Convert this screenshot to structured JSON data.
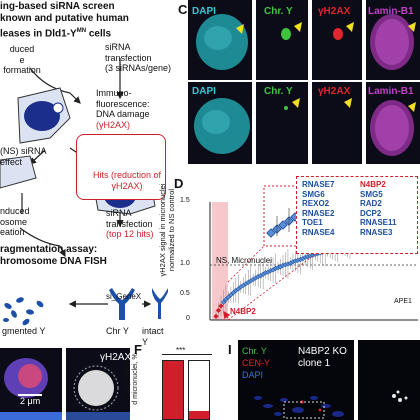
{
  "panel_b": {
    "header_line1": "ing-based siRNA screen",
    "header_line2": "known and putative human",
    "header_line3": "leases in Dld1-Y",
    "header_superscript": "MN",
    "header_suffix": " cells",
    "step_left_1": "duced",
    "step_left_2": "e formation",
    "step_sirna_1": "siRNA",
    "step_sirna_2": "transfection",
    "step_sirna_3": "(3 siRNAs/gene)",
    "step_if_1": "Immuno-",
    "step_if_2": "fluorescence:",
    "step_if_3": "DNA damage",
    "step_if_4": "(γH2AX)",
    "ns_1": "(NS) siRNA",
    "ns_2": "effect",
    "hits_1": "Hits (reduction of",
    "hits_2": "γH2AX)",
    "induced_1": "nduced",
    "induced_2": "osome",
    "induced_3": "eation",
    "sirna2_1": "siRNA",
    "sirna2_2": "transfection",
    "sirna2_3": "(top 12 hits)",
    "frag_1": "ragmentation assay:",
    "frag_2": "hromosome DNA FISH",
    "frag_left": "gmented Y",
    "chr_y": "Chr Y",
    "si_gene": "si_GeneX",
    "intact_y": "intact Y"
  },
  "panel_c": {
    "letter": "C",
    "labels": [
      "DAPI",
      "Chr. Y",
      "γH2AX",
      "Lamin-B1"
    ],
    "label_colors": [
      "#38c8d0",
      "#3fc43f",
      "#e0262e",
      "#c23fc8"
    ]
  },
  "panel_d": {
    "letter": "D",
    "y_axis_line1": "γH2AX signal in micronuclei",
    "y_axis_line2": "normalized to NS control",
    "y_ticks": [
      "1.5",
      "1.0",
      "0.5",
      "0"
    ],
    "ns_label": "NS, Micronuclei",
    "genes_col1": [
      "RNASE7",
      "SMG6",
      "REXO2",
      "RNASE2",
      "TOE1",
      "RNASE4"
    ],
    "genes_col2": [
      "N4BP2",
      "SMG5",
      "RAD2",
      "DCP2",
      "RNASE11",
      "RNASE3"
    ],
    "highlight_gene": "N4BP2",
    "apex_label": "APE1"
  },
  "panel_e": {
    "scale": "2 μm",
    "marker": "γH2AX"
  },
  "panel_f": {
    "letter": "F",
    "y_label_1": "AX-positive",
    "y_label_2": "d micronuclei, %",
    "significance": "***"
  },
  "panel_i": {
    "letter": "I",
    "chr_y": "Chr. Y",
    "cen_y": "CEN-Y",
    "dapi": "DAPI",
    "title_1": "N4BP2 KO",
    "title_2": "clone 1"
  },
  "colors": {
    "red": "#d01f2a",
    "blue": "#1c4fa0",
    "dapi_cyan": "#38c8d0",
    "lamin_magenta": "#c23fc8",
    "green": "#3fc43f"
  },
  "chart_data": {
    "type": "scatter",
    "title": "",
    "xlabel": "",
    "ylabel": "γH2AX signal in micronuclei normalized to NS control",
    "ylim": [
      0,
      1.6
    ],
    "reference_line": 1.0,
    "series": [
      {
        "name": "siRNA knockdowns (sorted)",
        "values": [
          0.05,
          0.13,
          0.19,
          0.24,
          0.28,
          0.31,
          0.34,
          0.37,
          0.4,
          0.42,
          0.45,
          0.47,
          0.49,
          0.51,
          0.53,
          0.55,
          0.57,
          0.59,
          0.6,
          0.62,
          0.64,
          0.65,
          0.67,
          0.68,
          0.7,
          0.71,
          0.72,
          0.74,
          0.75,
          0.76,
          0.77,
          0.79,
          0.8,
          0.81,
          0.82,
          0.83,
          0.85,
          0.86,
          0.87,
          0.88,
          0.89,
          0.9,
          0.91,
          0.92,
          0.93,
          0.94,
          0.95,
          0.96,
          0.97,
          0.98,
          0.99,
          1.0,
          1.01,
          1.02,
          1.03,
          1.04,
          1.05,
          1.06,
          1.07,
          1.08,
          1.09,
          1.1,
          1.11,
          1.12,
          1.13,
          1.14,
          1.15,
          1.16,
          1.18,
          1.19,
          1.2,
          1.22,
          1.24,
          1.26,
          1.28,
          1.3,
          1.33,
          1.36,
          1.4,
          1.45
        ]
      }
    ]
  }
}
